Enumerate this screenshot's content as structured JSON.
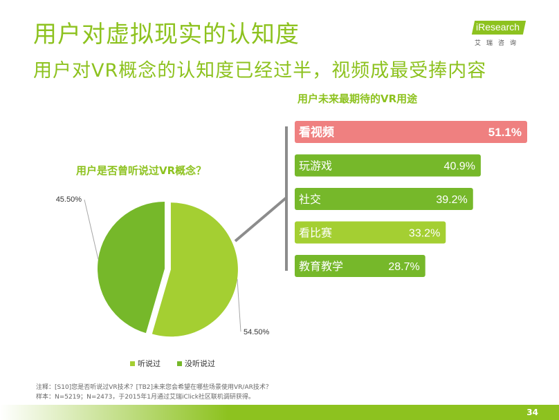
{
  "page": {
    "title": "用户对虚拟现实的认知度",
    "subtitle": "用户对VR概念的认知度已经过半，视频成最受捧内容",
    "logo_main": "iResearch",
    "logo_sub": "艾瑞咨询",
    "page_number": "34",
    "notes": [
      "注释：[S10]您是否听说过VR技术？[TB2]未来您会希望在哪些场景使用VR/AR技术？",
      "样本：N=5219；N=2473，于2015年1月通过艾瑞iClick社区联机调研获得。"
    ]
  },
  "chart_data": [
    {
      "type": "pie",
      "title": "用户是否曾听说过VR概念？",
      "categories": [
        "听说过",
        "没听说过"
      ],
      "values": [
        54.5,
        45.5
      ],
      "labels": [
        "54.50%",
        "45.50%"
      ],
      "colors": [
        "#a4cf32",
        "#76b82a"
      ],
      "legend": "bottom"
    },
    {
      "type": "bar",
      "orientation": "horizontal",
      "title": "用户未来最期待的VR用途",
      "categories": [
        "看视频",
        "玩游戏",
        "社交",
        "看比赛",
        "教育教学"
      ],
      "values": [
        51.1,
        40.9,
        39.2,
        33.2,
        28.7
      ],
      "labels": [
        "51.1%",
        "40.9%",
        "39.2%",
        "33.2%",
        "28.7%"
      ],
      "colors": [
        "#ef8080",
        "#76b82a",
        "#76b82a",
        "#a4cf32",
        "#76b82a"
      ],
      "unit": "%"
    }
  ]
}
